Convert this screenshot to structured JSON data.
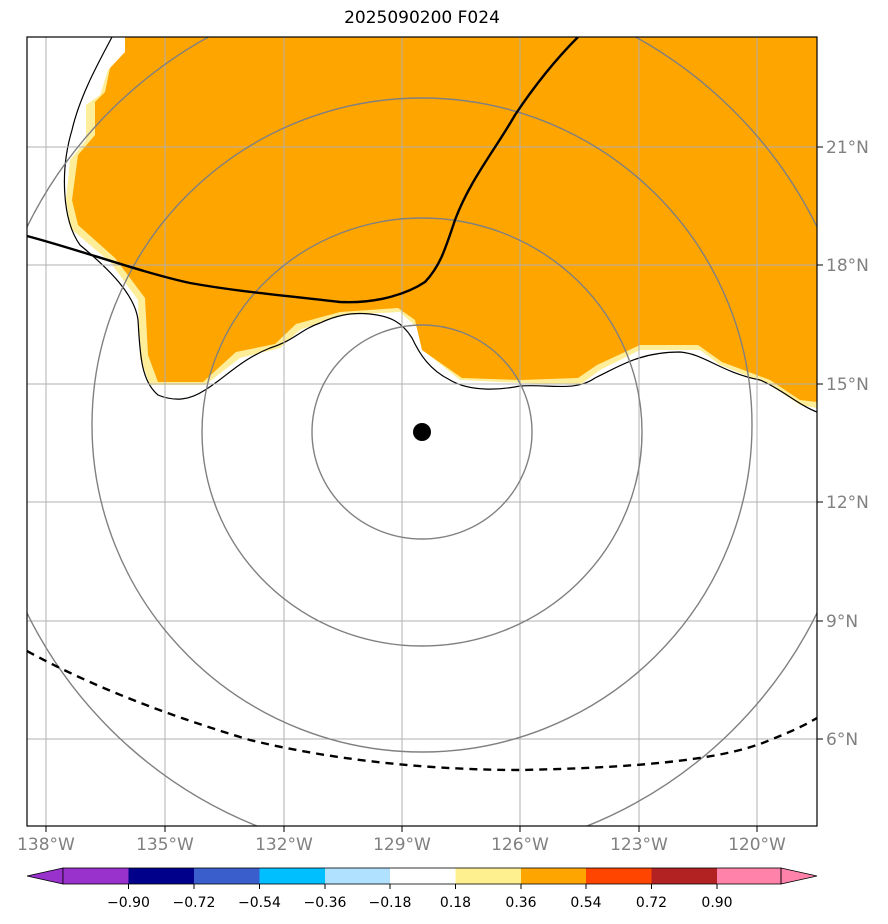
{
  "title": "2025090200 F024",
  "map": {
    "lon_ticks": [
      "138°W",
      "135°W",
      "132°W",
      "129°W",
      "126°W",
      "123°W",
      "120°W"
    ],
    "lat_ticks": [
      "21°N",
      "18°N",
      "15°N",
      "12°N",
      "9°N",
      "6°N"
    ],
    "center_marker": "storm-center",
    "fill_color": "#ffa500",
    "fill_edge_color": "#ffee99",
    "ring_color": "#808080",
    "grid_color": "#b0b0b0"
  },
  "colorbar": {
    "colors": [
      "#9932cc",
      "#00008b",
      "#3a5fcd",
      "#00bfff",
      "#b0e2ff",
      "#ffffff",
      "#fff08f",
      "#ffa500",
      "#ff4500",
      "#b22222",
      "#ff82ab"
    ],
    "labels": [
      "−0.90",
      "−0.72",
      "−0.54",
      "−0.36",
      "−0.18",
      "0.18",
      "0.36",
      "0.54",
      "0.72",
      "0.90"
    ]
  }
}
